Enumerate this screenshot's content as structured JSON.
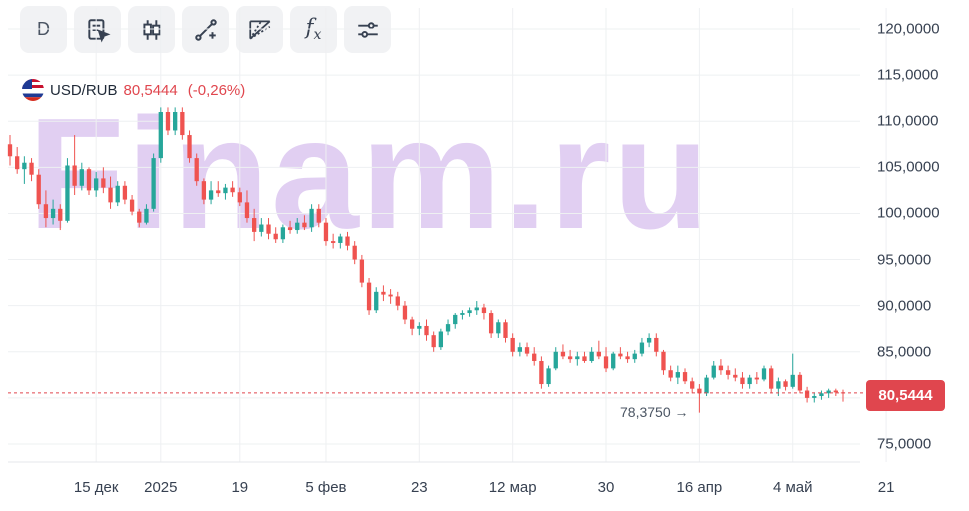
{
  "toolbar": {
    "buttons": [
      {
        "name": "interval-button",
        "icon": "text",
        "label": "D"
      },
      {
        "name": "chart-settings-button",
        "icon": "document-cursor-icon"
      },
      {
        "name": "chart-type-button",
        "icon": "candlestick-icon"
      },
      {
        "name": "drawing-tools-button",
        "icon": "line-tool-icon"
      },
      {
        "name": "fibonacci-tools-button",
        "icon": "fan-tool-icon"
      },
      {
        "name": "indicators-button",
        "icon": "function-icon",
        "label": "f"
      },
      {
        "name": "settings-button",
        "icon": "sliders-icon"
      }
    ]
  },
  "legend": {
    "symbol": "USD/RUB",
    "price": "80,5444",
    "change": "(-0,26%)",
    "flag_icon": "us-ru-flag-icon"
  },
  "watermark": "Finam.ru",
  "price_tag": "80,5444",
  "min_marker": "78,3750 →",
  "colors": {
    "up": "#26a69a",
    "down": "#ef5350",
    "price_line": "#e0464e",
    "watermark": "#c9a8e8"
  },
  "chart_data": {
    "type": "candlestick",
    "y_axis": {
      "min": 72.5,
      "max": 122.5,
      "ticks": [
        75,
        80,
        85,
        90,
        95,
        100,
        105,
        110,
        115,
        120
      ],
      "tick_labels": [
        "75,0000",
        "80,0000",
        "85,0000",
        "90,0000",
        "95,0000",
        "100,0000",
        "105,0000",
        "110,0000",
        "115,0000",
        "120,0000"
      ],
      "position": "right"
    },
    "x_axis": {
      "tick_labels": [
        "15 дек",
        "2025",
        "19",
        "5 фев",
        "23",
        "12 мар",
        "30",
        "16 апр",
        "4 май",
        "21"
      ],
      "tick_index": [
        12,
        21,
        32,
        44,
        57,
        70,
        83,
        96,
        109,
        122
      ]
    },
    "grid": true,
    "last_price": 80.5444,
    "period_min": 78.375,
    "candles": [
      [
        107.5,
        108.5,
        105.2,
        106.2
      ],
      [
        106.2,
        107.2,
        104.3,
        104.8
      ],
      [
        104.8,
        106.2,
        103.2,
        105.5
      ],
      [
        105.5,
        106.0,
        103.5,
        104.2
      ],
      [
        104.2,
        104.8,
        100.5,
        101.0
      ],
      [
        101.0,
        102.5,
        98.5,
        99.5
      ],
      [
        99.5,
        101.5,
        98.8,
        100.5
      ],
      [
        100.5,
        101.0,
        98.2,
        99.2
      ],
      [
        99.2,
        106.0,
        99.0,
        105.2
      ],
      [
        105.2,
        108.5,
        102.0,
        103.0
      ],
      [
        103.0,
        105.5,
        102.5,
        104.8
      ],
      [
        104.8,
        105.0,
        102.0,
        102.5
      ],
      [
        102.5,
        104.5,
        101.8,
        103.8
      ],
      [
        103.8,
        105.0,
        102.2,
        102.8
      ],
      [
        102.8,
        104.0,
        100.5,
        101.2
      ],
      [
        101.2,
        103.5,
        100.8,
        103.0
      ],
      [
        103.0,
        103.5,
        101.0,
        101.5
      ],
      [
        101.5,
        102.0,
        99.8,
        100.2
      ],
      [
        100.2,
        100.5,
        98.5,
        99.0
      ],
      [
        99.0,
        101.0,
        98.8,
        100.5
      ],
      [
        100.5,
        106.5,
        100.2,
        106.0
      ],
      [
        106.0,
        111.5,
        105.5,
        111.0
      ],
      [
        111.0,
        111.5,
        108.5,
        109.0
      ],
      [
        109.0,
        111.5,
        108.5,
        111.0
      ],
      [
        111.0,
        111.5,
        108.0,
        108.5
      ],
      [
        108.5,
        109.0,
        105.5,
        106.0
      ],
      [
        106.0,
        106.5,
        103.0,
        103.5
      ],
      [
        103.5,
        103.8,
        101.0,
        101.5
      ],
      [
        101.5,
        103.5,
        101.0,
        102.5
      ],
      [
        102.5,
        103.5,
        101.8,
        102.2
      ],
      [
        102.2,
        103.2,
        101.5,
        102.8
      ],
      [
        102.8,
        103.5,
        101.8,
        102.3
      ],
      [
        102.3,
        102.8,
        100.8,
        101.2
      ],
      [
        101.2,
        102.5,
        99.0,
        99.5
      ],
      [
        99.5,
        100.5,
        97.0,
        98.0
      ],
      [
        98.0,
        99.5,
        97.5,
        98.8
      ],
      [
        98.8,
        99.5,
        97.2,
        97.8
      ],
      [
        97.8,
        98.5,
        96.8,
        97.2
      ],
      [
        97.2,
        98.8,
        96.8,
        98.5
      ],
      [
        98.5,
        99.2,
        97.8,
        98.2
      ],
      [
        98.2,
        99.5,
        97.8,
        99.0
      ],
      [
        99.0,
        99.8,
        98.2,
        98.5
      ],
      [
        98.5,
        101.0,
        98.0,
        100.5
      ],
      [
        100.5,
        101.0,
        98.5,
        99.0
      ],
      [
        99.0,
        99.5,
        96.5,
        97.0
      ],
      [
        97.0,
        97.8,
        96.2,
        96.8
      ],
      [
        96.8,
        97.8,
        96.2,
        97.5
      ],
      [
        97.5,
        98.0,
        96.0,
        96.5
      ],
      [
        96.5,
        97.0,
        94.5,
        95.0
      ],
      [
        95.0,
        95.5,
        92.0,
        92.5
      ],
      [
        92.5,
        93.0,
        89.0,
        89.5
      ],
      [
        89.5,
        92.0,
        89.2,
        91.5
      ],
      [
        91.5,
        92.2,
        90.5,
        91.2
      ],
      [
        91.2,
        91.8,
        90.2,
        91.0
      ],
      [
        91.0,
        91.5,
        89.5,
        90.0
      ],
      [
        90.0,
        90.5,
        88.0,
        88.5
      ],
      [
        88.5,
        88.8,
        86.8,
        87.5
      ],
      [
        87.5,
        88.2,
        86.8,
        87.8
      ],
      [
        87.8,
        88.5,
        86.2,
        86.8
      ],
      [
        86.8,
        87.2,
        85.0,
        85.5
      ],
      [
        85.5,
        87.5,
        85.2,
        87.2
      ],
      [
        87.2,
        88.5,
        86.8,
        88.0
      ],
      [
        88.0,
        89.2,
        87.5,
        89.0
      ],
      [
        89.0,
        89.5,
        88.5,
        89.2
      ],
      [
        89.2,
        89.8,
        88.8,
        89.5
      ],
      [
        89.5,
        90.5,
        89.0,
        89.8
      ],
      [
        89.8,
        90.2,
        88.5,
        89.2
      ],
      [
        89.2,
        89.5,
        86.5,
        87.0
      ],
      [
        87.0,
        88.5,
        86.5,
        88.2
      ],
      [
        88.2,
        88.5,
        86.0,
        86.5
      ],
      [
        86.5,
        87.0,
        84.5,
        85.0
      ],
      [
        85.0,
        86.0,
        84.5,
        85.5
      ],
      [
        85.5,
        86.0,
        84.5,
        84.8
      ],
      [
        84.8,
        85.5,
        83.5,
        84.0
      ],
      [
        84.0,
        84.5,
        81.0,
        81.5
      ],
      [
        81.5,
        83.5,
        81.2,
        83.2
      ],
      [
        83.2,
        85.5,
        83.0,
        85.0
      ],
      [
        85.0,
        85.8,
        84.2,
        84.5
      ],
      [
        84.5,
        85.2,
        83.8,
        84.2
      ],
      [
        84.2,
        85.0,
        83.5,
        84.5
      ],
      [
        84.5,
        85.0,
        83.8,
        84.0
      ],
      [
        84.0,
        85.5,
        83.8,
        85.0
      ],
      [
        85.0,
        86.2,
        84.2,
        84.5
      ],
      [
        84.5,
        85.5,
        82.8,
        83.2
      ],
      [
        83.2,
        85.0,
        83.0,
        84.8
      ],
      [
        84.8,
        85.5,
        84.2,
        84.5
      ],
      [
        84.5,
        85.0,
        83.8,
        84.2
      ],
      [
        84.2,
        85.2,
        83.8,
        84.8
      ],
      [
        84.8,
        86.5,
        84.5,
        86.0
      ],
      [
        86.0,
        87.0,
        85.5,
        86.5
      ],
      [
        86.5,
        87.0,
        84.5,
        85.0
      ],
      [
        85.0,
        85.2,
        82.5,
        83.0
      ],
      [
        83.0,
        83.5,
        81.8,
        82.2
      ],
      [
        82.2,
        83.5,
        81.5,
        82.8
      ],
      [
        82.8,
        83.2,
        81.5,
        81.8
      ],
      [
        81.8,
        82.2,
        80.5,
        81.0
      ],
      [
        81.0,
        81.5,
        78.4,
        80.5
      ],
      [
        80.5,
        82.5,
        80.2,
        82.2
      ],
      [
        82.2,
        84.0,
        82.0,
        83.5
      ],
      [
        83.5,
        84.2,
        82.5,
        83.0
      ],
      [
        83.0,
        83.5,
        82.0,
        82.5
      ],
      [
        82.5,
        83.2,
        81.8,
        82.2
      ],
      [
        82.2,
        82.8,
        81.0,
        81.5
      ],
      [
        81.5,
        82.5,
        81.0,
        82.2
      ],
      [
        82.2,
        82.8,
        81.5,
        82.0
      ],
      [
        82.0,
        83.5,
        81.8,
        83.2
      ],
      [
        83.2,
        83.5,
        80.5,
        81.0
      ],
      [
        81.0,
        82.2,
        80.2,
        81.8
      ],
      [
        81.8,
        82.0,
        80.8,
        81.2
      ],
      [
        81.2,
        84.8,
        81.0,
        82.5
      ],
      [
        82.5,
        82.8,
        80.5,
        80.8
      ],
      [
        80.8,
        81.2,
        79.5,
        80.0
      ],
      [
        80.0,
        80.6,
        79.5,
        80.2
      ],
      [
        80.2,
        80.8,
        79.8,
        80.5
      ],
      [
        80.5,
        81.0,
        80.0,
        80.8
      ],
      [
        80.8,
        81.0,
        80.2,
        80.6
      ],
      [
        80.6,
        80.9,
        79.6,
        80.5444
      ]
    ]
  }
}
